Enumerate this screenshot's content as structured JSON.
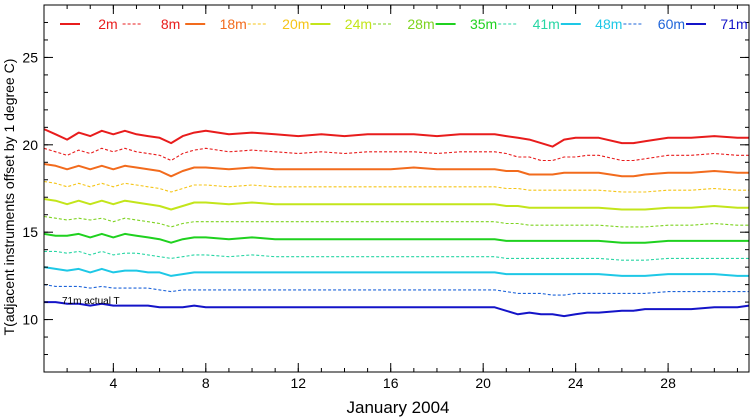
{
  "chart_data": {
    "type": "line",
    "xlabel": "January 2004",
    "ylabel": "T(adjacent instruments offset by 1 degree C)",
    "xlim": [
      1,
      31.5
    ],
    "ylim": [
      7,
      28
    ],
    "x_ticks": [
      4,
      8,
      12,
      16,
      20,
      24,
      28
    ],
    "y_ticks": [
      10,
      15,
      20,
      25
    ],
    "grid": false,
    "legend_position": "top",
    "annotation": "71m actual T",
    "x": [
      1,
      1.5,
      2,
      2.5,
      3,
      3.5,
      4,
      4.5,
      5,
      5.5,
      6,
      6.5,
      7,
      7.5,
      8,
      9,
      10,
      11,
      12,
      13,
      14,
      15,
      16,
      17,
      18,
      19,
      20,
      20.5,
      21,
      21.5,
      22,
      22.5,
      23,
      23.5,
      24,
      24.5,
      25,
      26,
      26.5,
      27,
      28,
      29,
      30,
      31,
      31.5
    ],
    "series": [
      {
        "name": "2m",
        "color": "#e81c1c",
        "dashed": false,
        "values": [
          20.9,
          20.6,
          20.3,
          20.7,
          20.5,
          20.8,
          20.6,
          20.8,
          20.6,
          20.5,
          20.4,
          20.1,
          20.5,
          20.7,
          20.8,
          20.6,
          20.7,
          20.6,
          20.5,
          20.6,
          20.5,
          20.6,
          20.6,
          20.6,
          20.5,
          20.6,
          20.6,
          20.6,
          20.5,
          20.4,
          20.3,
          20.1,
          19.9,
          20.3,
          20.4,
          20.4,
          20.4,
          20.1,
          20.1,
          20.2,
          20.4,
          20.4,
          20.5,
          20.4,
          20.4
        ]
      },
      {
        "name": "8m",
        "color": "#e81c1c",
        "dashed": true,
        "values": [
          19.8,
          19.6,
          19.4,
          19.7,
          19.5,
          19.8,
          19.6,
          19.8,
          19.6,
          19.5,
          19.4,
          19.1,
          19.5,
          19.7,
          19.8,
          19.6,
          19.7,
          19.6,
          19.5,
          19.6,
          19.5,
          19.6,
          19.6,
          19.6,
          19.5,
          19.6,
          19.6,
          19.6,
          19.5,
          19.3,
          19.3,
          19.1,
          19.1,
          19.3,
          19.3,
          19.4,
          19.4,
          19.1,
          19.1,
          19.2,
          19.4,
          19.4,
          19.5,
          19.4,
          19.4
        ]
      },
      {
        "name": "18m",
        "color": "#f26b1d",
        "dashed": false,
        "values": [
          18.9,
          18.8,
          18.6,
          18.8,
          18.6,
          18.8,
          18.6,
          18.8,
          18.7,
          18.6,
          18.5,
          18.2,
          18.5,
          18.7,
          18.7,
          18.6,
          18.7,
          18.6,
          18.6,
          18.6,
          18.6,
          18.6,
          18.6,
          18.7,
          18.6,
          18.6,
          18.6,
          18.6,
          18.5,
          18.5,
          18.3,
          18.3,
          18.3,
          18.4,
          18.4,
          18.4,
          18.4,
          18.2,
          18.2,
          18.3,
          18.4,
          18.4,
          18.5,
          18.4,
          18.4
        ]
      },
      {
        "name": "20m",
        "color": "#f5c518",
        "dashed": true,
        "values": [
          17.9,
          17.8,
          17.6,
          17.8,
          17.6,
          17.8,
          17.6,
          17.8,
          17.7,
          17.6,
          17.5,
          17.3,
          17.5,
          17.7,
          17.7,
          17.6,
          17.7,
          17.6,
          17.6,
          17.6,
          17.6,
          17.6,
          17.6,
          17.6,
          17.6,
          17.6,
          17.6,
          17.6,
          17.5,
          17.5,
          17.4,
          17.4,
          17.4,
          17.4,
          17.4,
          17.4,
          17.4,
          17.3,
          17.3,
          17.3,
          17.4,
          17.4,
          17.5,
          17.4,
          17.4
        ]
      },
      {
        "name": "24m",
        "color": "#c3e51b",
        "dashed": false,
        "values": [
          16.9,
          16.8,
          16.6,
          16.8,
          16.6,
          16.8,
          16.6,
          16.8,
          16.7,
          16.6,
          16.5,
          16.3,
          16.5,
          16.7,
          16.7,
          16.6,
          16.7,
          16.6,
          16.6,
          16.6,
          16.6,
          16.6,
          16.6,
          16.6,
          16.6,
          16.6,
          16.6,
          16.6,
          16.5,
          16.5,
          16.4,
          16.4,
          16.4,
          16.4,
          16.4,
          16.4,
          16.4,
          16.3,
          16.3,
          16.3,
          16.4,
          16.4,
          16.5,
          16.4,
          16.4
        ]
      },
      {
        "name": "28m",
        "color": "#7ed321",
        "dashed": true,
        "values": [
          15.9,
          15.8,
          15.7,
          15.8,
          15.7,
          15.8,
          15.6,
          15.8,
          15.7,
          15.6,
          15.5,
          15.3,
          15.5,
          15.6,
          15.6,
          15.6,
          15.6,
          15.6,
          15.6,
          15.6,
          15.6,
          15.6,
          15.6,
          15.6,
          15.6,
          15.6,
          15.6,
          15.6,
          15.5,
          15.5,
          15.4,
          15.4,
          15.4,
          15.4,
          15.4,
          15.4,
          15.4,
          15.3,
          15.3,
          15.3,
          15.4,
          15.4,
          15.5,
          15.4,
          15.4
        ]
      },
      {
        "name": "35m",
        "color": "#1fd11f",
        "dashed": false,
        "values": [
          14.9,
          14.8,
          14.8,
          14.9,
          14.7,
          14.9,
          14.7,
          14.9,
          14.8,
          14.7,
          14.6,
          14.4,
          14.6,
          14.7,
          14.7,
          14.6,
          14.7,
          14.6,
          14.6,
          14.6,
          14.6,
          14.6,
          14.6,
          14.6,
          14.6,
          14.6,
          14.6,
          14.6,
          14.5,
          14.5,
          14.5,
          14.5,
          14.5,
          14.5,
          14.5,
          14.5,
          14.5,
          14.4,
          14.4,
          14.4,
          14.5,
          14.5,
          14.5,
          14.5,
          14.5
        ]
      },
      {
        "name": "41m",
        "color": "#28d6a4",
        "dashed": true,
        "values": [
          13.9,
          13.9,
          13.8,
          13.9,
          13.7,
          13.9,
          13.7,
          13.8,
          13.8,
          13.7,
          13.6,
          13.5,
          13.6,
          13.7,
          13.7,
          13.6,
          13.7,
          13.6,
          13.6,
          13.6,
          13.6,
          13.6,
          13.6,
          13.6,
          13.6,
          13.6,
          13.6,
          13.6,
          13.5,
          13.5,
          13.5,
          13.5,
          13.5,
          13.5,
          13.5,
          13.5,
          13.5,
          13.4,
          13.4,
          13.4,
          13.5,
          13.5,
          13.5,
          13.5,
          13.5
        ]
      },
      {
        "name": "48m",
        "color": "#1ec8e6",
        "dashed": false,
        "values": [
          13.0,
          12.9,
          12.8,
          12.9,
          12.7,
          12.9,
          12.7,
          12.8,
          12.8,
          12.7,
          12.7,
          12.5,
          12.6,
          12.7,
          12.7,
          12.7,
          12.7,
          12.7,
          12.7,
          12.7,
          12.7,
          12.7,
          12.7,
          12.7,
          12.7,
          12.7,
          12.7,
          12.7,
          12.6,
          12.6,
          12.6,
          12.6,
          12.6,
          12.6,
          12.6,
          12.6,
          12.6,
          12.5,
          12.5,
          12.5,
          12.6,
          12.6,
          12.6,
          12.5,
          12.5
        ]
      },
      {
        "name": "60m",
        "color": "#1e64d9",
        "dashed": true,
        "values": [
          12.0,
          11.9,
          11.9,
          11.9,
          11.8,
          11.9,
          11.8,
          11.8,
          11.8,
          11.8,
          11.7,
          11.6,
          11.7,
          11.7,
          11.7,
          11.7,
          11.7,
          11.7,
          11.7,
          11.7,
          11.7,
          11.7,
          11.7,
          11.7,
          11.7,
          11.7,
          11.7,
          11.7,
          11.6,
          11.5,
          11.5,
          11.5,
          11.4,
          11.4,
          11.5,
          11.5,
          11.5,
          11.5,
          11.5,
          11.5,
          11.6,
          11.6,
          11.6,
          11.6,
          11.6
        ]
      },
      {
        "name": "71m",
        "color": "#1414c8",
        "dashed": false,
        "values": [
          11.0,
          11.0,
          10.9,
          10.9,
          10.8,
          10.9,
          10.8,
          10.8,
          10.8,
          10.8,
          10.7,
          10.7,
          10.7,
          10.8,
          10.7,
          10.7,
          10.7,
          10.7,
          10.7,
          10.7,
          10.7,
          10.7,
          10.7,
          10.7,
          10.7,
          10.7,
          10.7,
          10.7,
          10.5,
          10.3,
          10.4,
          10.3,
          10.3,
          10.2,
          10.3,
          10.4,
          10.4,
          10.5,
          10.5,
          10.6,
          10.6,
          10.6,
          10.7,
          10.7,
          10.8
        ]
      }
    ]
  }
}
